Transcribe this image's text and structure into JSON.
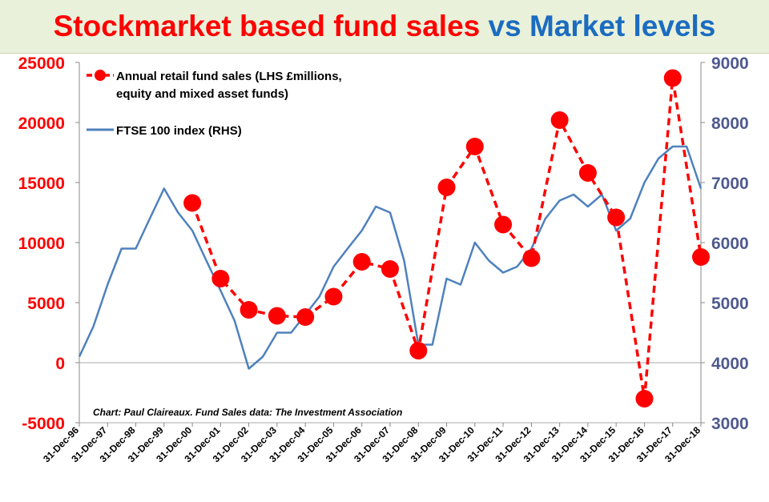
{
  "title": {
    "part1": "Stockmarket based fund sales",
    "part2": "vs Market levels"
  },
  "colors": {
    "sales": "#ff0000",
    "ftse": "#4f81bd",
    "left_axis": "#ff0000",
    "right_axis": "#4f5a8e",
    "title_red": "#ff0000",
    "title_blue": "#1b6cc0",
    "band": "#e9f1da"
  },
  "chart_data": {
    "type": "line",
    "title": "Stockmarket based fund sales vs Market levels",
    "x_axis": {
      "tick_labels": [
        "31-Dec-96",
        "31-Dec-97",
        "31-Dec-98",
        "31-Dec-99",
        "31-Dec-00",
        "31-Dec-01",
        "31-Dec-02",
        "31-Dec-03",
        "31-Dec-04",
        "31-Dec-05",
        "31-Dec-06",
        "31-Dec-07",
        "31-Dec-08",
        "31-Dec-09",
        "31-Dec-10",
        "31-Dec-11",
        "31-Dec-12",
        "31-Dec-13",
        "31-Dec-14",
        "31-Dec-15",
        "31-Dec-16",
        "31-Dec-17",
        "31-Dec-18"
      ],
      "range": [
        "31-Dec-96",
        "31-Dec-18"
      ]
    },
    "y_left": {
      "min": -5000,
      "max": 25000,
      "ticks": [
        -5000,
        0,
        5000,
        10000,
        15000,
        20000,
        25000
      ]
    },
    "y_right": {
      "min": 3000,
      "max": 9000,
      "ticks": [
        3000,
        4000,
        5000,
        6000,
        7000,
        8000,
        9000
      ]
    },
    "legend": {
      "placement": "top-left"
    },
    "grid": false,
    "annotation": "Chart: Paul Claireaux. Fund Sales data: The Investment Association",
    "series": [
      {
        "name": "Annual retail fund sales (LHS £millions, equity and mixed asset funds)",
        "legend_lines": [
          "Annual retail fund sales (LHS £millions,",
          "equity and mixed asset funds)"
        ],
        "axis": "left",
        "style": "dashed-markers",
        "x": [
          "31-Dec-00",
          "31-Dec-01",
          "31-Dec-02",
          "31-Dec-03",
          "31-Dec-04",
          "31-Dec-05",
          "31-Dec-06",
          "31-Dec-07",
          "31-Dec-08",
          "31-Dec-09",
          "31-Dec-10",
          "31-Dec-11",
          "31-Dec-12",
          "31-Dec-13",
          "31-Dec-14",
          "31-Dec-15",
          "31-Dec-16",
          "31-Dec-17",
          "31-Dec-18"
        ],
        "values": [
          13300,
          7000,
          4400,
          3900,
          3800,
          5500,
          8400,
          7800,
          1000,
          14600,
          18000,
          11500,
          8700,
          20200,
          15800,
          12100,
          -3000,
          23700,
          8800
        ]
      },
      {
        "name": "FTSE 100 index (RHS)",
        "legend_lines": [
          "FTSE 100 index (RHS)"
        ],
        "axis": "right",
        "style": "line",
        "x": [
          "31-Dec-96",
          "30-Jun-97",
          "31-Dec-97",
          "30-Jun-98",
          "31-Dec-98",
          "30-Jun-99",
          "31-Dec-99",
          "30-Jun-00",
          "31-Dec-00",
          "30-Jun-01",
          "31-Dec-01",
          "30-Jun-02",
          "31-Dec-02",
          "30-Jun-03",
          "31-Dec-03",
          "30-Jun-04",
          "31-Dec-04",
          "30-Jun-05",
          "31-Dec-05",
          "30-Jun-06",
          "31-Dec-06",
          "30-Jun-07",
          "31-Dec-07",
          "30-Jun-08",
          "31-Dec-08",
          "30-Jun-09",
          "31-Dec-09",
          "30-Jun-10",
          "31-Dec-10",
          "30-Jun-11",
          "31-Dec-11",
          "30-Jun-12",
          "31-Dec-12",
          "30-Jun-13",
          "31-Dec-13",
          "30-Jun-14",
          "31-Dec-14",
          "30-Jun-15",
          "31-Dec-15",
          "30-Jun-16",
          "31-Dec-16",
          "30-Jun-17",
          "31-Dec-17",
          "30-Jun-18",
          "31-Dec-18"
        ],
        "values": [
          4100,
          4600,
          5300,
          5900,
          5900,
          6400,
          6900,
          6500,
          6200,
          5700,
          5200,
          4700,
          3900,
          4100,
          4500,
          4500,
          4800,
          5100,
          5600,
          5900,
          6200,
          6600,
          6500,
          5700,
          4300,
          4300,
          5400,
          5300,
          6000,
          5700,
          5500,
          5600,
          5900,
          6400,
          6700,
          6800,
          6600,
          6800,
          6200,
          6400,
          7000,
          7400,
          7600,
          7600,
          6900
        ]
      }
    ]
  }
}
